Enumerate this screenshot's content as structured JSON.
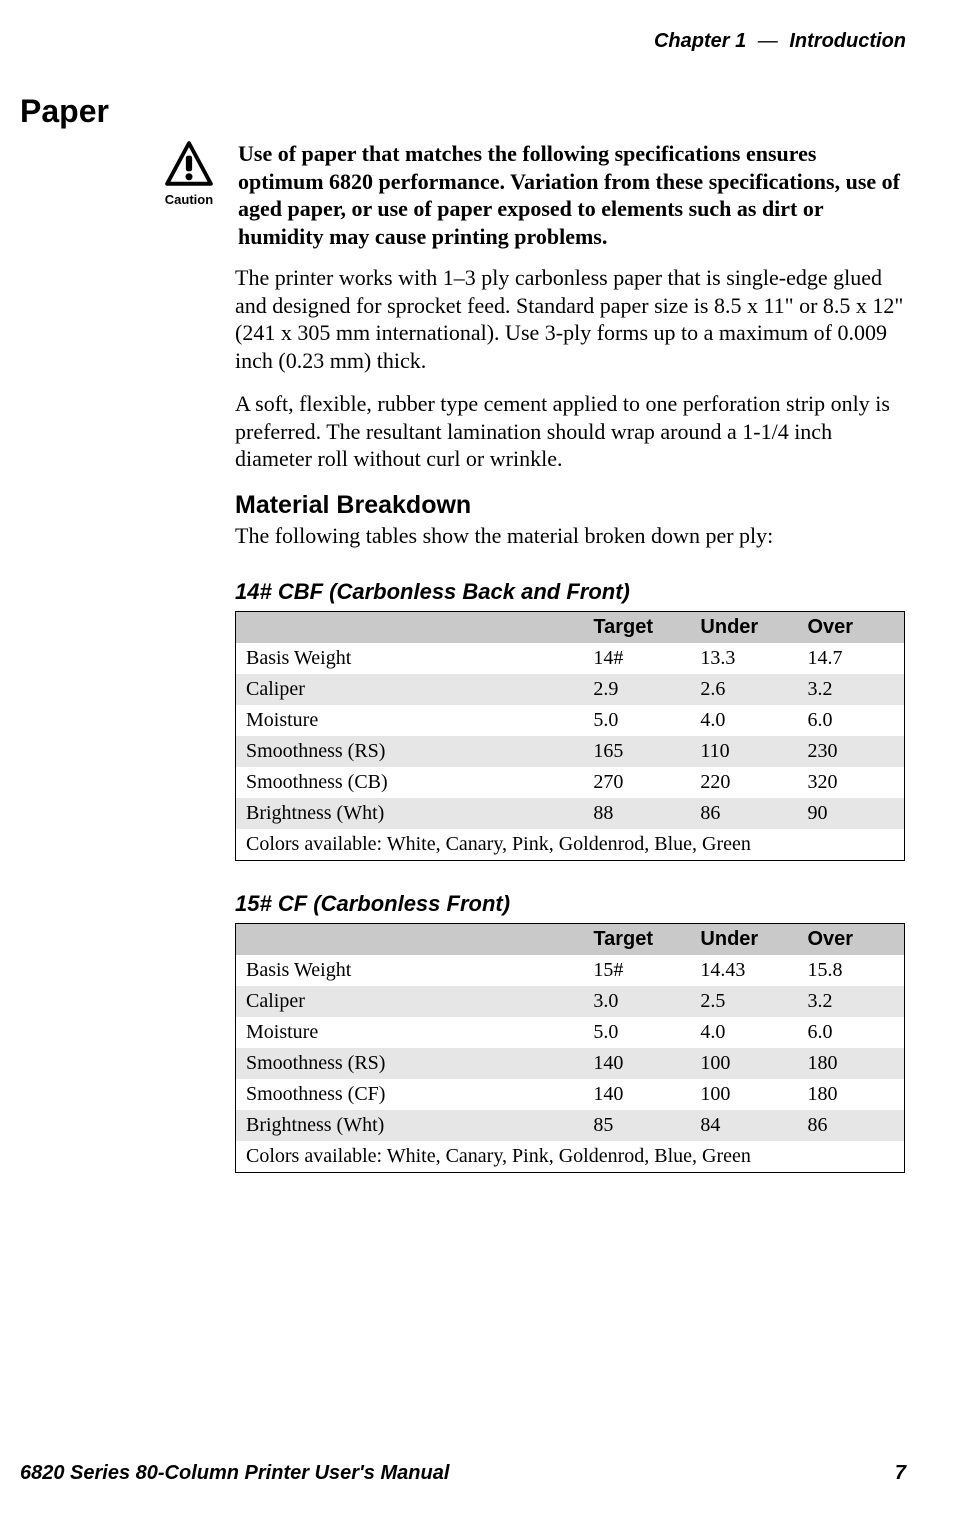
{
  "page": {
    "header": {
      "chapter_label": "Chapter",
      "chapter_number": "1",
      "separator": "—",
      "chapter_title": "Introduction"
    },
    "section_title": "Paper",
    "caution": {
      "icon_label": "Caution",
      "text": "Use of paper that matches the following specifications ensures optimum 6820 performance. Variation from these specifications, use of aged paper, or use of paper exposed to elements such as dirt or humidity may cause printing problems."
    },
    "paragraphs": [
      "The printer works with 1–3 ply carbonless paper that is single-edge glued and designed for sprocket feed. Standard paper size is 8.5 x 11\" or 8.5 x 12\" (241 x 305 mm international). Use 3-ply forms up to a maximum of 0.009 inch (0.23 mm) thick.",
      "A soft, flexible, rubber type cement applied to one perforation strip only is preferred. The resultant lamination should wrap around a 1-1/4 inch diameter roll without curl or wrinkle."
    ],
    "subhead": "Material Breakdown",
    "subhead_intro": "The following tables show the material broken down per ply:",
    "tables": [
      {
        "title": "14# CBF (Carbonless Back and Front)",
        "columns": [
          "",
          "Target",
          "Under",
          "Over"
        ],
        "rows": [
          [
            "Basis Weight",
            "14#",
            "13.3",
            "14.7"
          ],
          [
            "Caliper",
            "2.9",
            "2.6",
            "3.2"
          ],
          [
            "Moisture",
            "5.0",
            "4.0",
            "6.0"
          ],
          [
            "Smoothness (RS)",
            "165",
            "110",
            "230"
          ],
          [
            "Smoothness (CB)",
            "270",
            "220",
            "320"
          ],
          [
            "Brightness (Wht)",
            "88",
            "86",
            "90"
          ]
        ],
        "footer": "Colors available: White, Canary, Pink, Goldenrod, Blue, Green",
        "header_bg": "#c9c9c9",
        "row_alt_bg": "#e6e6e6",
        "row_bg": "#ffffff"
      },
      {
        "title": "15# CF (Carbonless Front)",
        "columns": [
          "",
          "Target",
          "Under",
          "Over"
        ],
        "rows": [
          [
            "Basis Weight",
            "15#",
            "14.43",
            "15.8"
          ],
          [
            "Caliper",
            "3.0",
            "2.5",
            "3.2"
          ],
          [
            "Moisture",
            "5.0",
            "4.0",
            "6.0"
          ],
          [
            "Smoothness (RS)",
            "140",
            "100",
            "180"
          ],
          [
            "Smoothness (CF)",
            "140",
            "100",
            "180"
          ],
          [
            "Brightness (Wht)",
            "85",
            "84",
            "86"
          ]
        ],
        "footer": "Colors available: White, Canary, Pink, Goldenrod, Blue, Green",
        "header_bg": "#c9c9c9",
        "row_alt_bg": "#e6e6e6",
        "row_bg": "#ffffff"
      }
    ],
    "footer": {
      "manual_title": "6820 Series 80-Column Printer User's Manual",
      "page_number": "7"
    },
    "style": {
      "body_font_size_pt": 16,
      "heading_font_family": "Arial Black",
      "body_font_family": "Times New Roman",
      "background_color": "#ffffff",
      "text_color": "#000000",
      "table_border_color": "#000000"
    }
  }
}
